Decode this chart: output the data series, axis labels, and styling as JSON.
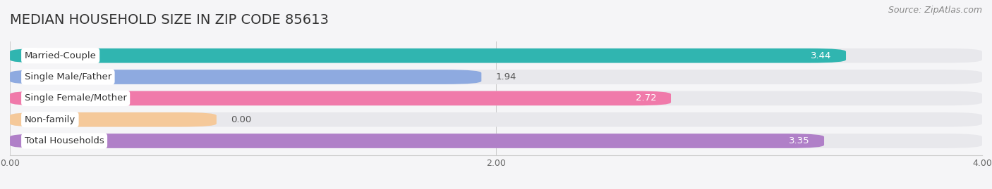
{
  "title": "MEDIAN HOUSEHOLD SIZE IN ZIP CODE 85613",
  "source": "Source: ZipAtlas.com",
  "categories": [
    "Married-Couple",
    "Single Male/Father",
    "Single Female/Mother",
    "Non-family",
    "Total Households"
  ],
  "values": [
    3.44,
    1.94,
    2.72,
    0.0,
    3.35
  ],
  "bar_colors": [
    "#30b5b0",
    "#8eaae0",
    "#f07aaa",
    "#f5c99a",
    "#b080c8"
  ],
  "bar_bg_color": "#e8e8ec",
  "xlim": [
    0,
    4.0
  ],
  "xticks": [
    0.0,
    2.0,
    4.0
  ],
  "title_fontsize": 14,
  "source_fontsize": 9,
  "label_fontsize": 9.5,
  "value_fontsize": 9.5,
  "tick_fontsize": 9,
  "background_color": "#f5f5f7",
  "bar_height": 0.68,
  "bar_gap": 0.32
}
